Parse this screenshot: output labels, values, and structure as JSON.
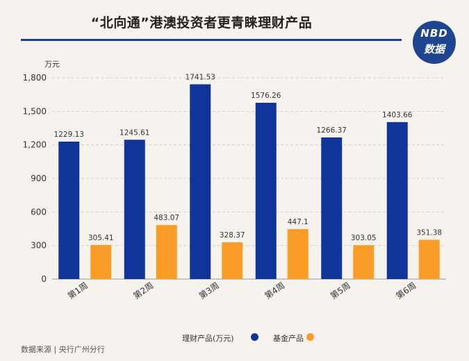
{
  "title": "“北向通”港澳投资者更青睐理财产品",
  "logo": {
    "line1": "NBD",
    "line2": "数据"
  },
  "source": "数据来源 | 央行广州分行",
  "chart_data": {
    "type": "bar",
    "ylabel": "万元",
    "ylim": [
      0,
      1800
    ],
    "yticks": [
      0,
      300,
      600,
      900,
      1200,
      1500,
      1800
    ],
    "ytick_labels": [
      "0",
      "300",
      "600",
      "900",
      "1,200",
      "1,500",
      "1,800"
    ],
    "categories": [
      "第1周",
      "第2周",
      "第3周",
      "第4周",
      "第5周",
      "第6周"
    ],
    "grid": true,
    "legend_position": "bottom",
    "series": [
      {
        "name": "理财产品(万元)",
        "color": "#11349a",
        "values": [
          1229.13,
          1245.61,
          1741.53,
          1576.26,
          1266.37,
          1403.66
        ],
        "labels": [
          "1229.13",
          "1245.61",
          "1741.53",
          "1576.26",
          "1266.37",
          "1403.66"
        ]
      },
      {
        "name": "基金产品",
        "color": "#f99d28",
        "values": [
          305.41,
          483.07,
          328.37,
          447.1,
          303.05,
          351.38
        ],
        "labels": [
          "305.41",
          "483.07",
          "328.37",
          "447.1",
          "303.05",
          "351.38"
        ]
      }
    ]
  }
}
